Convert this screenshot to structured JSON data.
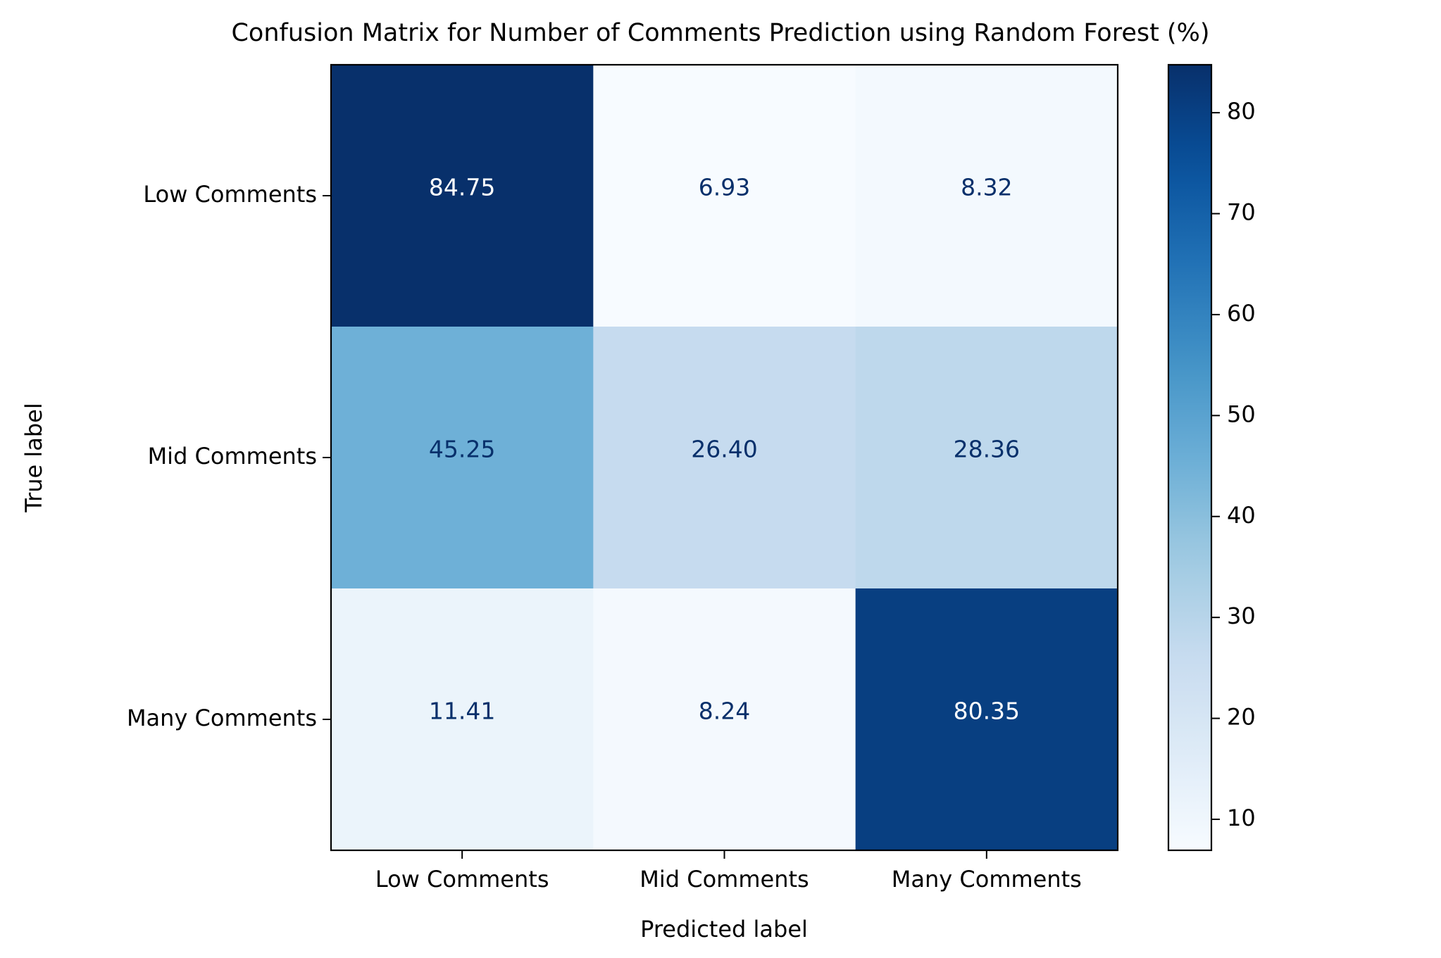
{
  "chart_data": {
    "type": "heatmap",
    "title": "Confusion Matrix for Number of Comments Prediction using Random Forest (%)",
    "xlabel": "Predicted label",
    "ylabel": "True label",
    "x_categories": [
      "Low Comments",
      "Mid Comments",
      "Many Comments"
    ],
    "y_categories": [
      "Low Comments",
      "Mid Comments",
      "Many Comments"
    ],
    "values": [
      [
        84.75,
        6.93,
        8.32
      ],
      [
        45.25,
        26.4,
        28.36
      ],
      [
        11.41,
        8.24,
        80.35
      ]
    ],
    "value_labels": [
      [
        "84.75",
        "6.93",
        "8.32"
      ],
      [
        "45.25",
        "26.40",
        "28.36"
      ],
      [
        "11.41",
        "8.24",
        "80.35"
      ]
    ],
    "colormap": "Blues",
    "colorbar": {
      "range": [
        6.93,
        84.75
      ],
      "ticks": [
        10,
        20,
        30,
        40,
        50,
        60,
        70,
        80
      ],
      "tick_labels": [
        "10",
        "20",
        "30",
        "40",
        "50",
        "60",
        "70",
        "80"
      ]
    },
    "text_color_dark": "#08306b",
    "text_color_light": "#ffffff"
  }
}
